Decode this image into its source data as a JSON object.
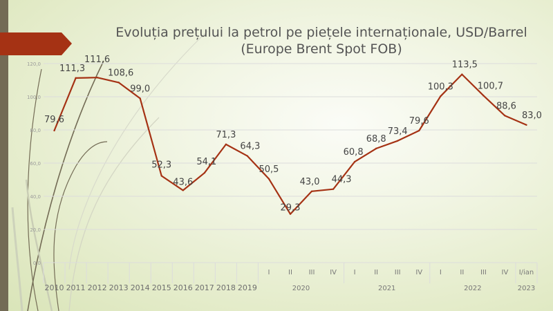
{
  "slide": {
    "title_line1": "Evoluția prețului la petrol pe piețele internaționale, USD/Barrel",
    "title_line2": "(Europe Brent Spot FOB)",
    "accent_color": "#a53214",
    "strip_color": "#736b55"
  },
  "chart_data": {
    "type": "line",
    "title": "Evoluția prețului la petrol pe piețele internaționale, USD/Barrel (Europe Brent Spot FOB)",
    "xlabel": "",
    "ylabel": "USD/Barrel",
    "ylim": [
      0,
      120
    ],
    "yticks": [
      "0,0",
      "20,0",
      "40,0",
      "60,0",
      "80,0",
      "100,0",
      "120,0"
    ],
    "ytick_values": [
      0,
      20,
      40,
      60,
      80,
      100,
      120
    ],
    "grid": true,
    "legend": "none",
    "line_color": "#a53214",
    "categories": [
      {
        "label": "2010",
        "group": ""
      },
      {
        "label": "2011",
        "group": ""
      },
      {
        "label": "2012",
        "group": ""
      },
      {
        "label": "2013",
        "group": ""
      },
      {
        "label": "2014",
        "group": ""
      },
      {
        "label": "2015",
        "group": ""
      },
      {
        "label": "2016",
        "group": ""
      },
      {
        "label": "2017",
        "group": ""
      },
      {
        "label": "2018",
        "group": ""
      },
      {
        "label": "2019",
        "group": ""
      },
      {
        "label": "I",
        "group": "2020"
      },
      {
        "label": "II",
        "group": "2020"
      },
      {
        "label": "III",
        "group": "2020"
      },
      {
        "label": "IV",
        "group": "2020"
      },
      {
        "label": "I",
        "group": "2021"
      },
      {
        "label": "II",
        "group": "2021"
      },
      {
        "label": "III",
        "group": "2021"
      },
      {
        "label": "IV",
        "group": "2021"
      },
      {
        "label": "I",
        "group": "2022"
      },
      {
        "label": "II",
        "group": "2022"
      },
      {
        "label": "III",
        "group": "2022"
      },
      {
        "label": "IV",
        "group": "2022"
      },
      {
        "label": "I/ian",
        "group": "2023"
      }
    ],
    "groups": [
      "2020",
      "2021",
      "2022",
      "2023"
    ],
    "series": [
      {
        "name": "Europe Brent Spot FOB",
        "values": [
          79.6,
          111.3,
          111.6,
          108.6,
          99.0,
          52.3,
          43.6,
          54.1,
          71.3,
          64.3,
          50.5,
          29.3,
          43.0,
          44.3,
          60.8,
          68.8,
          73.4,
          79.6,
          100.3,
          113.5,
          100.7,
          88.6,
          83.0
        ],
        "labels": [
          "79,6",
          "111,3",
          "111,6",
          "108,6",
          "99,0",
          "52,3",
          "43,6",
          "54,1",
          "71,3",
          "64,3",
          "50,5",
          "29,3",
          "43,0",
          "44,3",
          "60,8",
          "68,8",
          "73,4",
          "79,6",
          "100,3",
          "113,5",
          "100,7",
          "88,6",
          "83,0"
        ]
      }
    ]
  }
}
